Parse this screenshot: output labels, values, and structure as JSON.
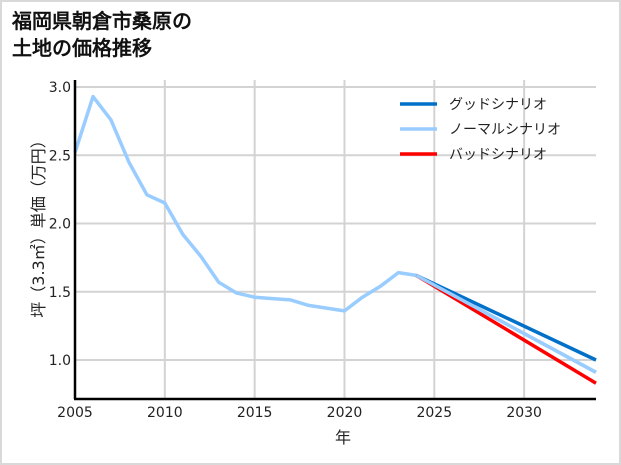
{
  "title": {
    "line1": "福岡県朝倉市桑原の",
    "line2": "土地の価格推移"
  },
  "chart_data": {
    "type": "line",
    "title": "福岡県朝倉市桑原の土地の価格推移",
    "xlabel": "年",
    "ylabel": "坪（3.3㎡）単価（万円）",
    "xlim": [
      2005,
      2034
    ],
    "ylim": [
      0.72,
      3.0
    ],
    "xticks": [
      2005,
      2010,
      2015,
      2020,
      2025,
      2030
    ],
    "yticks": [
      1.0,
      1.5,
      2.0,
      2.5,
      3.0
    ],
    "ytick_labels": [
      "1.0",
      "1.5",
      "2.0",
      "2.5",
      "3.0"
    ],
    "grid": true,
    "legend_position": "upper right",
    "series": [
      {
        "name": "グッドシナリオ",
        "color": "#0070c9",
        "x": [
          2024,
          2034
        ],
        "values": [
          1.62,
          1.0
        ]
      },
      {
        "name": "ノーマルシナリオ",
        "color": "#99ccff",
        "x": [
          2005,
          2006,
          2007,
          2008,
          2009,
          2010,
          2011,
          2012,
          2013,
          2014,
          2015,
          2016,
          2017,
          2018,
          2019,
          2020,
          2021,
          2022,
          2023,
          2024,
          2034
        ],
        "values": [
          2.52,
          2.93,
          2.76,
          2.45,
          2.21,
          2.15,
          1.92,
          1.76,
          1.57,
          1.49,
          1.46,
          1.45,
          1.44,
          1.4,
          1.38,
          1.36,
          1.46,
          1.54,
          1.64,
          1.62,
          0.91
        ]
      },
      {
        "name": "バッドシナリオ",
        "color": "#ff0000",
        "x": [
          2024,
          2034
        ],
        "values": [
          1.62,
          0.83
        ]
      }
    ]
  }
}
